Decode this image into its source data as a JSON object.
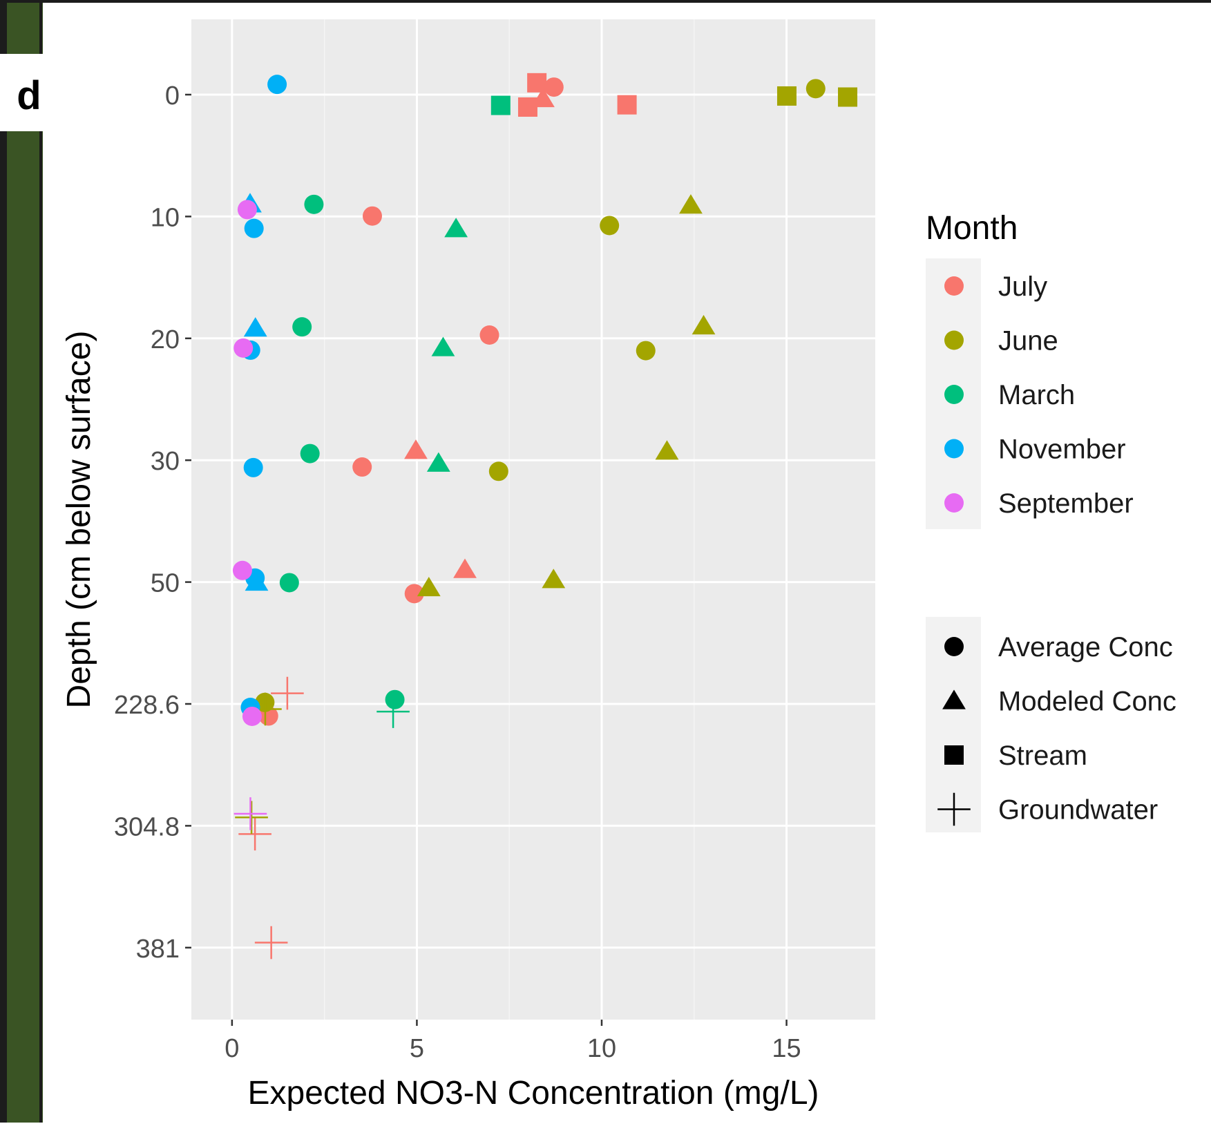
{
  "panel_label": "d",
  "chart_data": {
    "type": "scatter",
    "title": "",
    "xlabel": "Expected NO3-N Concentration (mg/L)",
    "ylabel": "Depth (cm below surface)",
    "xlim": [
      -1.1,
      17.4
    ],
    "x_ticks": [
      0,
      5,
      10,
      15
    ],
    "y_axis": {
      "reversed": true,
      "categorical_depth": true,
      "ticks": [
        {
          "value": 0,
          "label": "0"
        },
        {
          "value": 10,
          "label": "10"
        },
        {
          "value": 20,
          "label": "20"
        },
        {
          "value": 30,
          "label": "30"
        },
        {
          "value": 50,
          "label": "50"
        },
        {
          "value": 228.6,
          "label": "228.6"
        },
        {
          "value": 304.8,
          "label": "304.8"
        },
        {
          "value": 381,
          "label": "381"
        }
      ]
    },
    "grid": true,
    "legend": {
      "position": "right",
      "color_title": "Month",
      "colors": [
        {
          "name": "July",
          "color": "#F8766D"
        },
        {
          "name": "June",
          "color": "#A3A500"
        },
        {
          "name": "March",
          "color": "#00BF7D"
        },
        {
          "name": "November",
          "color": "#00B0F6"
        },
        {
          "name": "September",
          "color": "#E76BF3"
        }
      ],
      "shapes": [
        {
          "name": "Average Conc",
          "shape": "circle"
        },
        {
          "name": "Modeled Conc",
          "shape": "triangle"
        },
        {
          "name": "Stream",
          "shape": "square"
        },
        {
          "name": "Groundwater",
          "shape": "plus"
        }
      ]
    },
    "points": [
      {
        "x": 8.0,
        "y": 0,
        "month": "July",
        "shape": "square"
      },
      {
        "x": 8.2,
        "y": 0,
        "month": "July",
        "shape": "square"
      },
      {
        "x": 10.6,
        "y": 0,
        "month": "July",
        "shape": "square"
      },
      {
        "x": 8.6,
        "y": 0,
        "month": "July",
        "shape": "circle"
      },
      {
        "x": 8.3,
        "y": 0,
        "month": "July",
        "shape": "triangle"
      },
      {
        "x": 3.7,
        "y": 10,
        "month": "July",
        "shape": "circle"
      },
      {
        "x": 6.9,
        "y": 20,
        "month": "July",
        "shape": "circle"
      },
      {
        "x": 3.5,
        "y": 30,
        "month": "July",
        "shape": "circle"
      },
      {
        "x": 5.0,
        "y": 30,
        "month": "July",
        "shape": "triangle"
      },
      {
        "x": 5.0,
        "y": 50,
        "month": "July",
        "shape": "circle"
      },
      {
        "x": 6.4,
        "y": 50,
        "month": "July",
        "shape": "triangle"
      },
      {
        "x": 1.1,
        "y": 228.6,
        "month": "July",
        "shape": "circle"
      },
      {
        "x": 1.6,
        "y": 228.6,
        "month": "July",
        "shape": "plus"
      },
      {
        "x": 0.7,
        "y": 304.8,
        "month": "July",
        "shape": "plus"
      },
      {
        "x": 1.1,
        "y": 381,
        "month": "July",
        "shape": "plus"
      },
      {
        "x": 15.0,
        "y": 0,
        "month": "June",
        "shape": "square"
      },
      {
        "x": 16.6,
        "y": 0,
        "month": "June",
        "shape": "square"
      },
      {
        "x": 15.7,
        "y": 0,
        "month": "June",
        "shape": "circle"
      },
      {
        "x": 10.1,
        "y": 10,
        "month": "June",
        "shape": "circle"
      },
      {
        "x": 12.3,
        "y": 10,
        "month": "June",
        "shape": "triangle"
      },
      {
        "x": 11.1,
        "y": 20,
        "month": "June",
        "shape": "circle"
      },
      {
        "x": 12.7,
        "y": 20,
        "month": "June",
        "shape": "triangle"
      },
      {
        "x": 7.2,
        "y": 30,
        "month": "June",
        "shape": "circle"
      },
      {
        "x": 11.8,
        "y": 30,
        "month": "June",
        "shape": "triangle"
      },
      {
        "x": 5.4,
        "y": 50,
        "month": "June",
        "shape": "triangle"
      },
      {
        "x": 8.8,
        "y": 50,
        "month": "June",
        "shape": "triangle"
      },
      {
        "x": 1.0,
        "y": 228.6,
        "month": "June",
        "shape": "circle"
      },
      {
        "x": 1.0,
        "y": 228.6,
        "month": "June",
        "shape": "plus"
      },
      {
        "x": 0.6,
        "y": 304.8,
        "month": "June",
        "shape": "plus"
      },
      {
        "x": 7.3,
        "y": 0,
        "month": "March",
        "shape": "square"
      },
      {
        "x": 2.2,
        "y": 10,
        "month": "March",
        "shape": "circle"
      },
      {
        "x": 6.0,
        "y": 10,
        "month": "March",
        "shape": "triangle"
      },
      {
        "x": 1.8,
        "y": 20,
        "month": "March",
        "shape": "circle"
      },
      {
        "x": 5.6,
        "y": 20,
        "month": "March",
        "shape": "triangle"
      },
      {
        "x": 2.0,
        "y": 30,
        "month": "March",
        "shape": "circle"
      },
      {
        "x": 5.5,
        "y": 30,
        "month": "March",
        "shape": "triangle"
      },
      {
        "x": 1.5,
        "y": 50,
        "month": "March",
        "shape": "circle"
      },
      {
        "x": 4.4,
        "y": 228.6,
        "month": "March",
        "shape": "circle"
      },
      {
        "x": 4.4,
        "y": 228.6,
        "month": "March",
        "shape": "plus"
      },
      {
        "x": 1.3,
        "y": 0,
        "month": "November",
        "shape": "circle"
      },
      {
        "x": 0.7,
        "y": 10,
        "month": "November",
        "shape": "circle"
      },
      {
        "x": 0.6,
        "y": 10,
        "month": "November",
        "shape": "triangle"
      },
      {
        "x": 0.6,
        "y": 20,
        "month": "November",
        "shape": "circle"
      },
      {
        "x": 0.7,
        "y": 20,
        "month": "November",
        "shape": "triangle"
      },
      {
        "x": 0.6,
        "y": 30,
        "month": "November",
        "shape": "circle"
      },
      {
        "x": 0.6,
        "y": 50,
        "month": "November",
        "shape": "circle"
      },
      {
        "x": 0.6,
        "y": 50,
        "month": "November",
        "shape": "triangle"
      },
      {
        "x": 0.4,
        "y": 228.6,
        "month": "November",
        "shape": "circle"
      },
      {
        "x": 0.3,
        "y": 10,
        "month": "September",
        "shape": "circle"
      },
      {
        "x": 0.2,
        "y": 20,
        "month": "September",
        "shape": "circle"
      },
      {
        "x": 0.2,
        "y": 50,
        "month": "September",
        "shape": "circle"
      },
      {
        "x": 0.5,
        "y": 228.6,
        "month": "September",
        "shape": "circle"
      },
      {
        "x": 0.5,
        "y": 304.8,
        "month": "September",
        "shape": "plus"
      }
    ]
  }
}
